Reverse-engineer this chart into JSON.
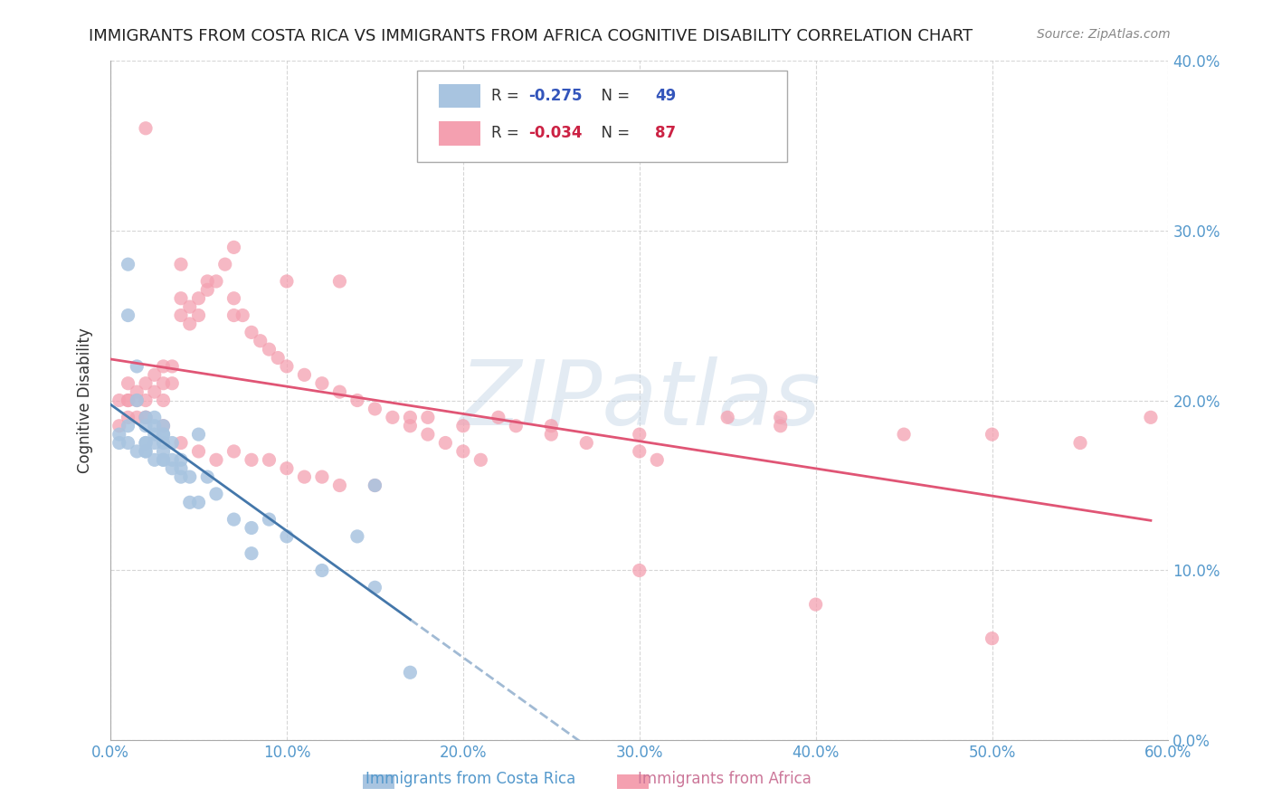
{
  "title": "IMMIGRANTS FROM COSTA RICA VS IMMIGRANTS FROM AFRICA COGNITIVE DISABILITY CORRELATION CHART",
  "source": "Source: ZipAtlas.com",
  "xlabel_ticks": [
    "0.0%",
    "10.0%",
    "20.0%",
    "30.0%",
    "40.0%",
    "50.0%",
    "60.0%"
  ],
  "xlabel_vals": [
    0.0,
    0.1,
    0.2,
    0.3,
    0.4,
    0.5,
    0.6
  ],
  "ylabel": "Cognitive Disability",
  "ylabel_ticks": [
    "0.0%",
    "10.0%",
    "20.0%",
    "30.0%",
    "40.0%"
  ],
  "ylabel_vals": [
    0.0,
    0.1,
    0.2,
    0.3,
    0.4
  ],
  "xlim": [
    0.0,
    0.6
  ],
  "ylim": [
    0.0,
    0.4
  ],
  "cr_R": -0.275,
  "cr_N": 49,
  "af_R": -0.034,
  "af_N": 87,
  "cr_color": "#a8c4e0",
  "af_color": "#f4a0b0",
  "cr_line_color": "#4477aa",
  "af_line_color": "#e05575",
  "watermark": "ZIPatlas",
  "watermark_color": "#c8d8e8",
  "cr_x": [
    0.005,
    0.01,
    0.01,
    0.015,
    0.015,
    0.02,
    0.02,
    0.02,
    0.025,
    0.025,
    0.025,
    0.03,
    0.03,
    0.03,
    0.03,
    0.035,
    0.035,
    0.04,
    0.04,
    0.045,
    0.045,
    0.05,
    0.05,
    0.055,
    0.06,
    0.07,
    0.08,
    0.09,
    0.1,
    0.12,
    0.14,
    0.15,
    0.17,
    0.02,
    0.025,
    0.03,
    0.005,
    0.01,
    0.015,
    0.02,
    0.025,
    0.03,
    0.035,
    0.01,
    0.02,
    0.03,
    0.04,
    0.08,
    0.15
  ],
  "cr_y": [
    0.18,
    0.28,
    0.25,
    0.22,
    0.2,
    0.19,
    0.185,
    0.175,
    0.19,
    0.185,
    0.18,
    0.18,
    0.175,
    0.17,
    0.165,
    0.175,
    0.165,
    0.16,
    0.155,
    0.155,
    0.14,
    0.18,
    0.14,
    0.155,
    0.145,
    0.13,
    0.125,
    0.13,
    0.12,
    0.1,
    0.12,
    0.09,
    0.04,
    0.17,
    0.175,
    0.185,
    0.175,
    0.175,
    0.17,
    0.17,
    0.165,
    0.165,
    0.16,
    0.185,
    0.175,
    0.18,
    0.165,
    0.11,
    0.15
  ],
  "af_x": [
    0.005,
    0.005,
    0.01,
    0.01,
    0.01,
    0.015,
    0.015,
    0.015,
    0.02,
    0.02,
    0.02,
    0.025,
    0.025,
    0.03,
    0.03,
    0.03,
    0.035,
    0.035,
    0.04,
    0.04,
    0.045,
    0.045,
    0.05,
    0.05,
    0.055,
    0.055,
    0.06,
    0.065,
    0.07,
    0.07,
    0.075,
    0.08,
    0.085,
    0.09,
    0.095,
    0.1,
    0.11,
    0.12,
    0.13,
    0.14,
    0.15,
    0.16,
    0.17,
    0.18,
    0.19,
    0.2,
    0.21,
    0.22,
    0.23,
    0.25,
    0.27,
    0.3,
    0.31,
    0.35,
    0.38,
    0.01,
    0.02,
    0.03,
    0.04,
    0.05,
    0.06,
    0.07,
    0.08,
    0.09,
    0.1,
    0.11,
    0.12,
    0.13,
    0.15,
    0.18,
    0.02,
    0.04,
    0.07,
    0.1,
    0.13,
    0.17,
    0.2,
    0.25,
    0.3,
    0.38,
    0.45,
    0.5,
    0.55,
    0.59,
    0.3,
    0.4,
    0.5
  ],
  "af_y": [
    0.2,
    0.185,
    0.21,
    0.2,
    0.19,
    0.205,
    0.2,
    0.19,
    0.21,
    0.2,
    0.19,
    0.215,
    0.205,
    0.22,
    0.21,
    0.2,
    0.22,
    0.21,
    0.26,
    0.25,
    0.255,
    0.245,
    0.26,
    0.25,
    0.27,
    0.265,
    0.27,
    0.28,
    0.26,
    0.25,
    0.25,
    0.24,
    0.235,
    0.23,
    0.225,
    0.22,
    0.215,
    0.21,
    0.205,
    0.2,
    0.195,
    0.19,
    0.185,
    0.18,
    0.175,
    0.17,
    0.165,
    0.19,
    0.185,
    0.18,
    0.175,
    0.17,
    0.165,
    0.19,
    0.185,
    0.2,
    0.19,
    0.185,
    0.175,
    0.17,
    0.165,
    0.17,
    0.165,
    0.165,
    0.16,
    0.155,
    0.155,
    0.15,
    0.15,
    0.19,
    0.36,
    0.28,
    0.29,
    0.27,
    0.27,
    0.19,
    0.185,
    0.185,
    0.18,
    0.19,
    0.18,
    0.18,
    0.175,
    0.19,
    0.1,
    0.08,
    0.06
  ]
}
